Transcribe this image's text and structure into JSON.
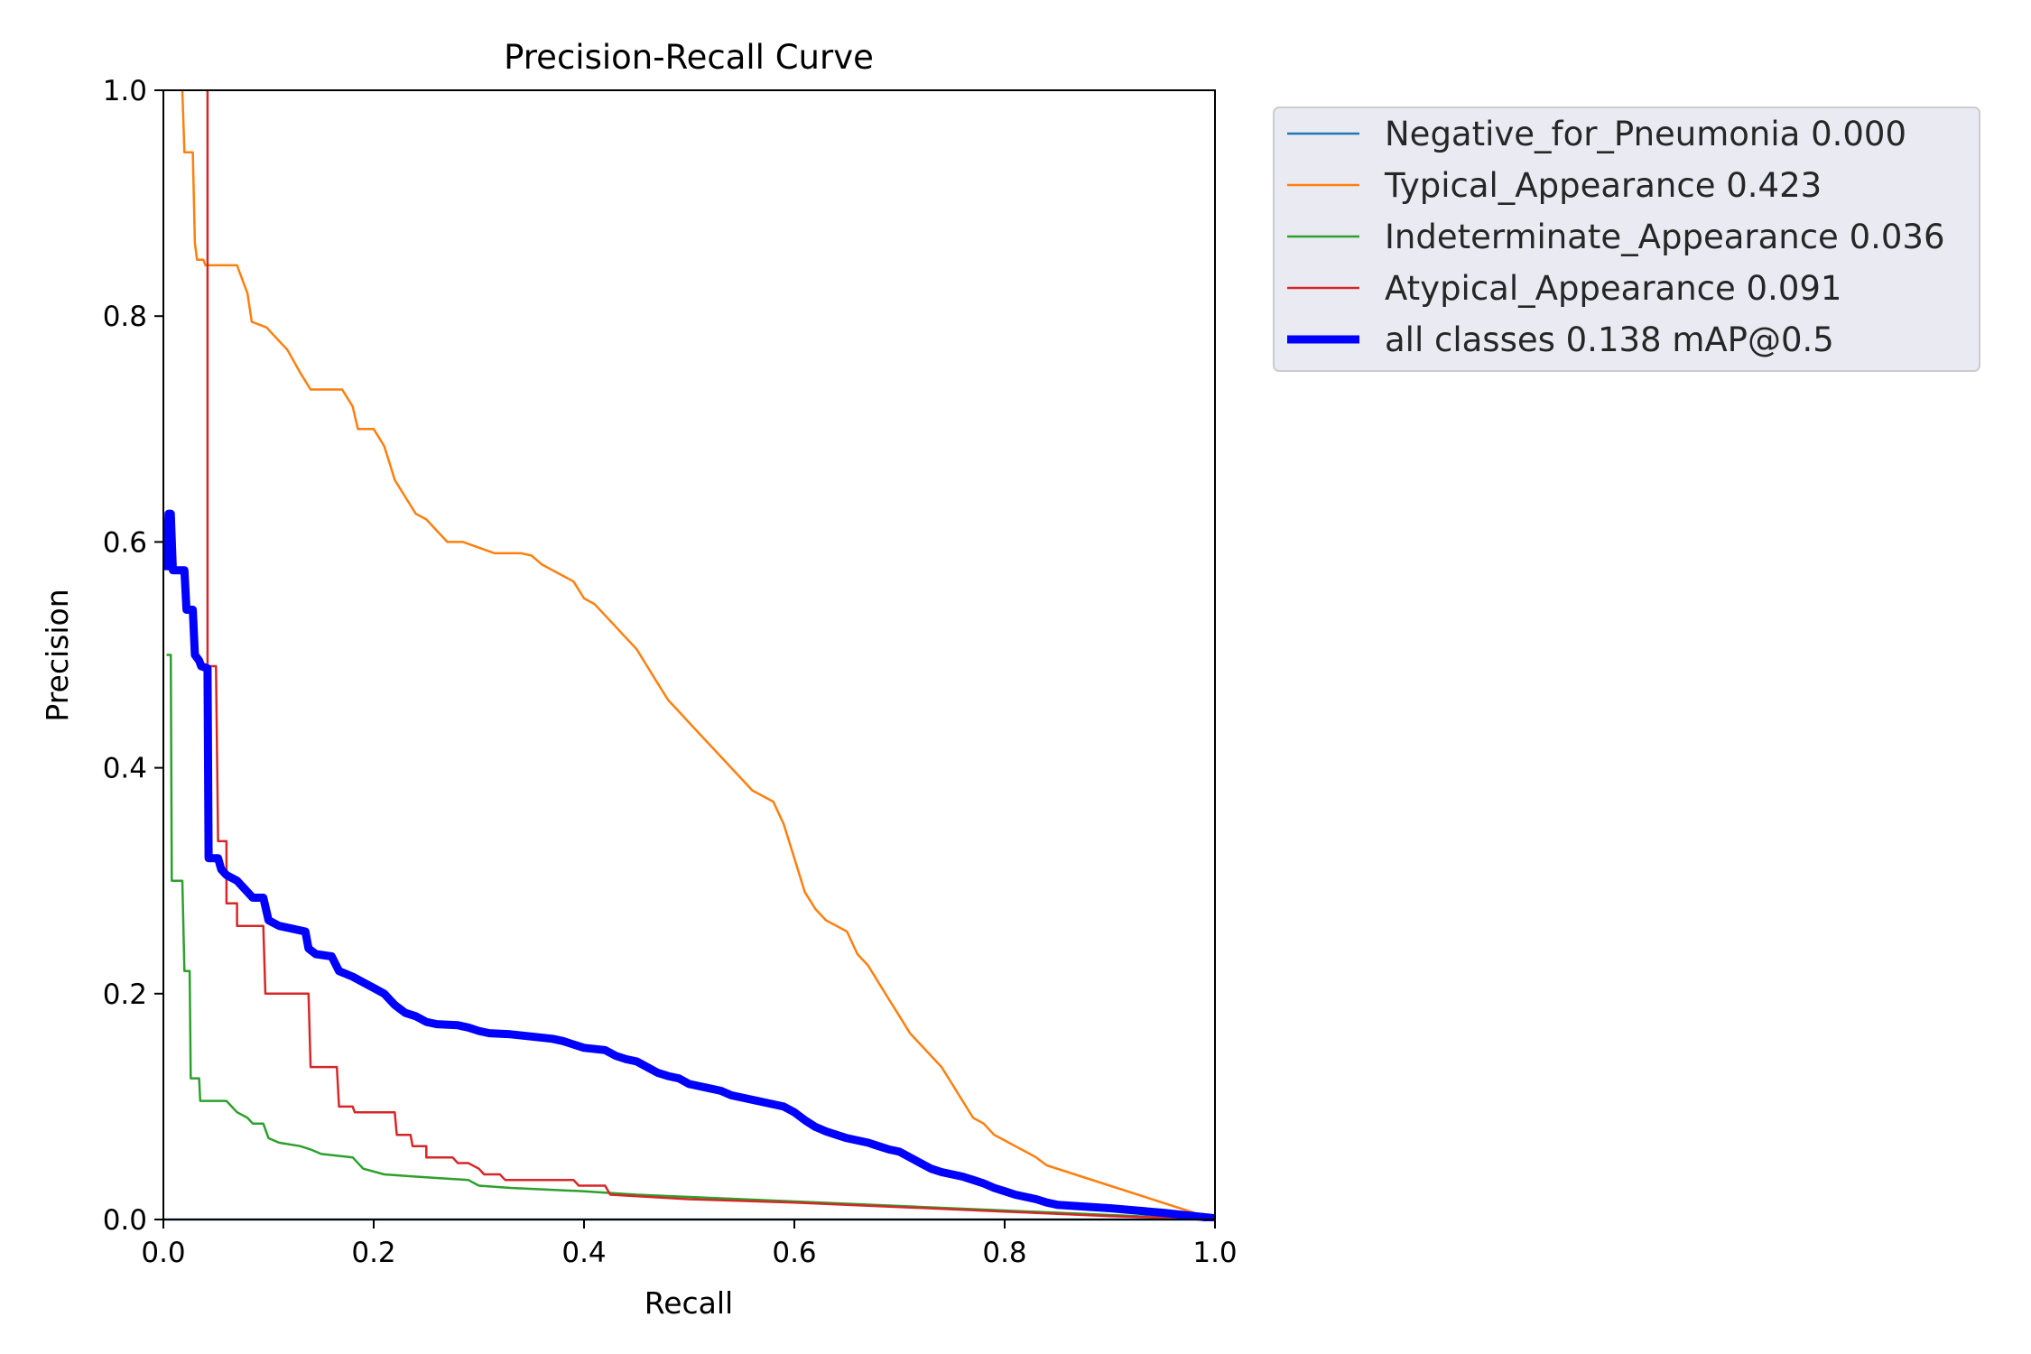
{
  "chart_data": {
    "type": "line",
    "title": "Precision-Recall Curve",
    "xlabel": "Recall",
    "ylabel": "Precision",
    "xlim": [
      0,
      1
    ],
    "ylim": [
      0,
      1
    ],
    "xticks": [
      "0.0",
      "0.2",
      "0.4",
      "0.6",
      "0.8",
      "1.0"
    ],
    "yticks": [
      "0.0",
      "0.2",
      "0.4",
      "0.6",
      "0.8",
      "1.0"
    ],
    "grid": false,
    "legend_position": "outside-top-right",
    "series": [
      {
        "name": "Negative_for_Pneumonia 0.000",
        "color": "#1f77b4",
        "points": [
          [
            0,
            0
          ],
          [
            1,
            0
          ]
        ]
      },
      {
        "name": "Typical_Appearance 0.423",
        "color": "#ff7f0e",
        "points": [
          [
            0.018,
            1.0
          ],
          [
            0.02,
            0.945
          ],
          [
            0.028,
            0.945
          ],
          [
            0.03,
            0.865
          ],
          [
            0.032,
            0.85
          ],
          [
            0.038,
            0.85
          ],
          [
            0.04,
            0.845
          ],
          [
            0.07,
            0.845
          ],
          [
            0.08,
            0.82
          ],
          [
            0.084,
            0.795
          ],
          [
            0.098,
            0.79
          ],
          [
            0.108,
            0.78
          ],
          [
            0.118,
            0.77
          ],
          [
            0.13,
            0.75
          ],
          [
            0.14,
            0.735
          ],
          [
            0.17,
            0.735
          ],
          [
            0.18,
            0.72
          ],
          [
            0.185,
            0.7
          ],
          [
            0.2,
            0.7
          ],
          [
            0.21,
            0.685
          ],
          [
            0.215,
            0.67
          ],
          [
            0.22,
            0.655
          ],
          [
            0.23,
            0.64
          ],
          [
            0.24,
            0.625
          ],
          [
            0.25,
            0.62
          ],
          [
            0.255,
            0.615
          ],
          [
            0.26,
            0.61
          ],
          [
            0.27,
            0.6
          ],
          [
            0.285,
            0.6
          ],
          [
            0.3,
            0.595
          ],
          [
            0.315,
            0.59
          ],
          [
            0.34,
            0.59
          ],
          [
            0.35,
            0.588
          ],
          [
            0.36,
            0.58
          ],
          [
            0.37,
            0.575
          ],
          [
            0.38,
            0.57
          ],
          [
            0.39,
            0.565
          ],
          [
            0.4,
            0.55
          ],
          [
            0.41,
            0.545
          ],
          [
            0.42,
            0.535
          ],
          [
            0.43,
            0.525
          ],
          [
            0.44,
            0.515
          ],
          [
            0.45,
            0.505
          ],
          [
            0.46,
            0.49
          ],
          [
            0.47,
            0.475
          ],
          [
            0.48,
            0.46
          ],
          [
            0.49,
            0.45
          ],
          [
            0.5,
            0.44
          ],
          [
            0.51,
            0.43
          ],
          [
            0.52,
            0.42
          ],
          [
            0.53,
            0.41
          ],
          [
            0.54,
            0.4
          ],
          [
            0.55,
            0.39
          ],
          [
            0.56,
            0.38
          ],
          [
            0.57,
            0.375
          ],
          [
            0.58,
            0.37
          ],
          [
            0.59,
            0.35
          ],
          [
            0.6,
            0.32
          ],
          [
            0.61,
            0.29
          ],
          [
            0.62,
            0.275
          ],
          [
            0.63,
            0.265
          ],
          [
            0.64,
            0.26
          ],
          [
            0.65,
            0.255
          ],
          [
            0.66,
            0.235
          ],
          [
            0.67,
            0.225
          ],
          [
            0.68,
            0.21
          ],
          [
            0.69,
            0.195
          ],
          [
            0.7,
            0.18
          ],
          [
            0.71,
            0.165
          ],
          [
            0.72,
            0.155
          ],
          [
            0.73,
            0.145
          ],
          [
            0.74,
            0.135
          ],
          [
            0.75,
            0.12
          ],
          [
            0.76,
            0.105
          ],
          [
            0.77,
            0.09
          ],
          [
            0.78,
            0.085
          ],
          [
            0.79,
            0.075
          ],
          [
            0.8,
            0.07
          ],
          [
            0.81,
            0.065
          ],
          [
            0.82,
            0.06
          ],
          [
            0.83,
            0.055
          ],
          [
            0.84,
            0.048
          ],
          [
            0.9,
            0.03
          ],
          [
            1.0,
            0.0
          ]
        ]
      },
      {
        "name": "Indeterminate_Appearance 0.036",
        "color": "#2ca02c",
        "points": [
          [
            0.003,
            0.5
          ],
          [
            0.007,
            0.5
          ],
          [
            0.008,
            0.3
          ],
          [
            0.018,
            0.3
          ],
          [
            0.02,
            0.22
          ],
          [
            0.025,
            0.22
          ],
          [
            0.026,
            0.125
          ],
          [
            0.034,
            0.125
          ],
          [
            0.035,
            0.105
          ],
          [
            0.06,
            0.105
          ],
          [
            0.065,
            0.1
          ],
          [
            0.07,
            0.095
          ],
          [
            0.08,
            0.09
          ],
          [
            0.085,
            0.085
          ],
          [
            0.095,
            0.085
          ],
          [
            0.1,
            0.072
          ],
          [
            0.11,
            0.068
          ],
          [
            0.13,
            0.065
          ],
          [
            0.14,
            0.062
          ],
          [
            0.15,
            0.058
          ],
          [
            0.18,
            0.055
          ],
          [
            0.19,
            0.045
          ],
          [
            0.21,
            0.04
          ],
          [
            0.24,
            0.038
          ],
          [
            0.29,
            0.035
          ],
          [
            0.3,
            0.03
          ],
          [
            0.33,
            0.028
          ],
          [
            0.4,
            0.025
          ],
          [
            0.45,
            0.022
          ],
          [
            0.5,
            0.02
          ],
          [
            0.55,
            0.018
          ],
          [
            0.6,
            0.016
          ],
          [
            0.7,
            0.012
          ],
          [
            0.8,
            0.008
          ],
          [
            0.9,
            0.004
          ],
          [
            1.0,
            0.0
          ]
        ]
      },
      {
        "name": "Atypical_Appearance 0.091",
        "color": "#d62728",
        "points": [
          [
            0.042,
            1.0
          ],
          [
            0.042,
            0.49
          ],
          [
            0.05,
            0.49
          ],
          [
            0.052,
            0.335
          ],
          [
            0.06,
            0.335
          ],
          [
            0.06,
            0.28
          ],
          [
            0.07,
            0.28
          ],
          [
            0.07,
            0.26
          ],
          [
            0.095,
            0.26
          ],
          [
            0.097,
            0.2
          ],
          [
            0.138,
            0.2
          ],
          [
            0.14,
            0.135
          ],
          [
            0.165,
            0.135
          ],
          [
            0.167,
            0.1
          ],
          [
            0.18,
            0.1
          ],
          [
            0.182,
            0.095
          ],
          [
            0.22,
            0.095
          ],
          [
            0.222,
            0.075
          ],
          [
            0.235,
            0.075
          ],
          [
            0.237,
            0.065
          ],
          [
            0.25,
            0.065
          ],
          [
            0.25,
            0.055
          ],
          [
            0.275,
            0.055
          ],
          [
            0.28,
            0.05
          ],
          [
            0.29,
            0.05
          ],
          [
            0.3,
            0.045
          ],
          [
            0.305,
            0.04
          ],
          [
            0.32,
            0.04
          ],
          [
            0.325,
            0.035
          ],
          [
            0.39,
            0.035
          ],
          [
            0.395,
            0.03
          ],
          [
            0.42,
            0.03
          ],
          [
            0.425,
            0.022
          ],
          [
            0.5,
            0.018
          ],
          [
            0.6,
            0.015
          ],
          [
            0.7,
            0.011
          ],
          [
            0.8,
            0.007
          ],
          [
            0.9,
            0.003
          ],
          [
            1.0,
            0.0
          ]
        ]
      },
      {
        "name": "all classes 0.138 mAP@0.5",
        "color": "#0000ff",
        "bold": true,
        "points": [
          [
            0.003,
            0.575
          ],
          [
            0.005,
            0.625
          ],
          [
            0.007,
            0.625
          ],
          [
            0.009,
            0.575
          ],
          [
            0.02,
            0.575
          ],
          [
            0.022,
            0.54
          ],
          [
            0.028,
            0.54
          ],
          [
            0.03,
            0.5
          ],
          [
            0.034,
            0.495
          ],
          [
            0.036,
            0.49
          ],
          [
            0.042,
            0.488
          ],
          [
            0.043,
            0.32
          ],
          [
            0.052,
            0.32
          ],
          [
            0.055,
            0.31
          ],
          [
            0.06,
            0.305
          ],
          [
            0.07,
            0.3
          ],
          [
            0.08,
            0.29
          ],
          [
            0.085,
            0.285
          ],
          [
            0.095,
            0.285
          ],
          [
            0.1,
            0.265
          ],
          [
            0.11,
            0.26
          ],
          [
            0.12,
            0.258
          ],
          [
            0.135,
            0.255
          ],
          [
            0.138,
            0.24
          ],
          [
            0.145,
            0.235
          ],
          [
            0.16,
            0.233
          ],
          [
            0.167,
            0.22
          ],
          [
            0.18,
            0.215
          ],
          [
            0.19,
            0.21
          ],
          [
            0.2,
            0.205
          ],
          [
            0.21,
            0.2
          ],
          [
            0.22,
            0.19
          ],
          [
            0.23,
            0.183
          ],
          [
            0.24,
            0.18
          ],
          [
            0.25,
            0.175
          ],
          [
            0.26,
            0.173
          ],
          [
            0.28,
            0.172
          ],
          [
            0.29,
            0.17
          ],
          [
            0.3,
            0.167
          ],
          [
            0.31,
            0.165
          ],
          [
            0.33,
            0.164
          ],
          [
            0.35,
            0.162
          ],
          [
            0.37,
            0.16
          ],
          [
            0.38,
            0.158
          ],
          [
            0.39,
            0.155
          ],
          [
            0.4,
            0.152
          ],
          [
            0.42,
            0.15
          ],
          [
            0.43,
            0.145
          ],
          [
            0.44,
            0.142
          ],
          [
            0.45,
            0.14
          ],
          [
            0.46,
            0.135
          ],
          [
            0.47,
            0.13
          ],
          [
            0.48,
            0.127
          ],
          [
            0.49,
            0.125
          ],
          [
            0.5,
            0.12
          ],
          [
            0.51,
            0.118
          ],
          [
            0.52,
            0.116
          ],
          [
            0.53,
            0.114
          ],
          [
            0.54,
            0.11
          ],
          [
            0.55,
            0.108
          ],
          [
            0.56,
            0.106
          ],
          [
            0.57,
            0.104
          ],
          [
            0.58,
            0.102
          ],
          [
            0.59,
            0.1
          ],
          [
            0.6,
            0.095
          ],
          [
            0.61,
            0.088
          ],
          [
            0.62,
            0.082
          ],
          [
            0.63,
            0.078
          ],
          [
            0.64,
            0.075
          ],
          [
            0.65,
            0.072
          ],
          [
            0.66,
            0.07
          ],
          [
            0.67,
            0.068
          ],
          [
            0.68,
            0.065
          ],
          [
            0.69,
            0.062
          ],
          [
            0.7,
            0.06
          ],
          [
            0.71,
            0.055
          ],
          [
            0.72,
            0.05
          ],
          [
            0.73,
            0.045
          ],
          [
            0.74,
            0.042
          ],
          [
            0.75,
            0.04
          ],
          [
            0.76,
            0.038
          ],
          [
            0.77,
            0.035
          ],
          [
            0.78,
            0.032
          ],
          [
            0.79,
            0.028
          ],
          [
            0.8,
            0.025
          ],
          [
            0.81,
            0.022
          ],
          [
            0.82,
            0.02
          ],
          [
            0.83,
            0.018
          ],
          [
            0.84,
            0.015
          ],
          [
            0.85,
            0.013
          ],
          [
            0.9,
            0.01
          ],
          [
            0.95,
            0.006
          ],
          [
            1.0,
            0.001
          ]
        ]
      }
    ]
  }
}
